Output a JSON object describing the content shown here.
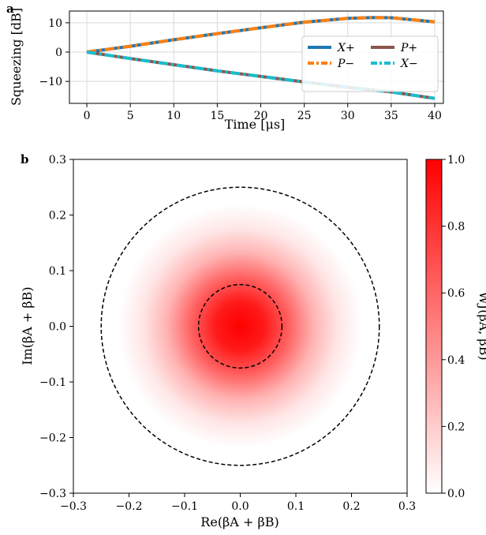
{
  "chart_data": [
    {
      "panel_label": "a",
      "type": "line",
      "xlabel": "Time [μs]",
      "ylabel": "Squeezing [dB]",
      "xlim": [
        -2,
        41
      ],
      "ylim": [
        -17.5,
        14
      ],
      "xticks": [
        0,
        5,
        10,
        15,
        20,
        25,
        30,
        35,
        40
      ],
      "yticks": [
        10,
        0,
        -10
      ],
      "grid": true,
      "legend_position": "center-right",
      "legend_columns": 2,
      "x": [
        0,
        5,
        10,
        15,
        20,
        25,
        30,
        33,
        35,
        40
      ],
      "series": [
        {
          "name": "X+",
          "color": "#1f77b4",
          "style": "solid",
          "values": [
            0,
            2.0,
            4.2,
            6.3,
            8.3,
            10.2,
            11.5,
            11.8,
            11.7,
            10.3
          ]
        },
        {
          "name": "P−",
          "color": "#ff7f0e",
          "style": "dashdot",
          "values": [
            0,
            2.0,
            4.2,
            6.3,
            8.3,
            10.2,
            11.5,
            11.8,
            11.7,
            10.3
          ]
        },
        {
          "name": "P+",
          "color": "#8c564b",
          "style": "solid",
          "values": [
            0,
            -2.2,
            -4.3,
            -6.4,
            -8.3,
            -10.2,
            -12.0,
            -13.0,
            -13.6,
            -15.8
          ]
        },
        {
          "name": "X−",
          "color": "#17becf",
          "style": "dashdot",
          "values": [
            0,
            -2.2,
            -4.3,
            -6.4,
            -8.3,
            -10.2,
            -12.0,
            -13.0,
            -13.6,
            -15.8
          ]
        }
      ]
    },
    {
      "panel_label": "b",
      "type": "heatmap",
      "xlabel": "Re(βA + βB)",
      "ylabel": "Im(βA + βB)",
      "colorbar_label": "WJ(βA, βB)",
      "xlim": [
        -0.3,
        0.3
      ],
      "ylim": [
        -0.3,
        0.3
      ],
      "xticks": [
        "−0.3",
        "−0.2",
        "−0.1",
        "0.0",
        "0.1",
        "0.2",
        "0.3"
      ],
      "yticks": [
        "0.3",
        "0.2",
        "0.1",
        "0.0",
        "−0.1",
        "−0.2",
        "−0.3"
      ],
      "colorbar_range": [
        0.0,
        1.0
      ],
      "colorbar_ticks": [
        "1.0",
        "0.8",
        "0.6",
        "0.4",
        "0.2",
        "0.0"
      ],
      "colormap": "white-to-red",
      "color_max": "#ff0000",
      "gaussian_center": [
        0.0,
        0.0
      ],
      "gaussian_sigma": 0.06,
      "circles": [
        {
          "center": [
            0,
            0
          ],
          "radius": 0.075,
          "style": "dashed"
        },
        {
          "center": [
            0,
            0
          ],
          "radius": 0.25,
          "style": "dashed"
        }
      ]
    }
  ]
}
